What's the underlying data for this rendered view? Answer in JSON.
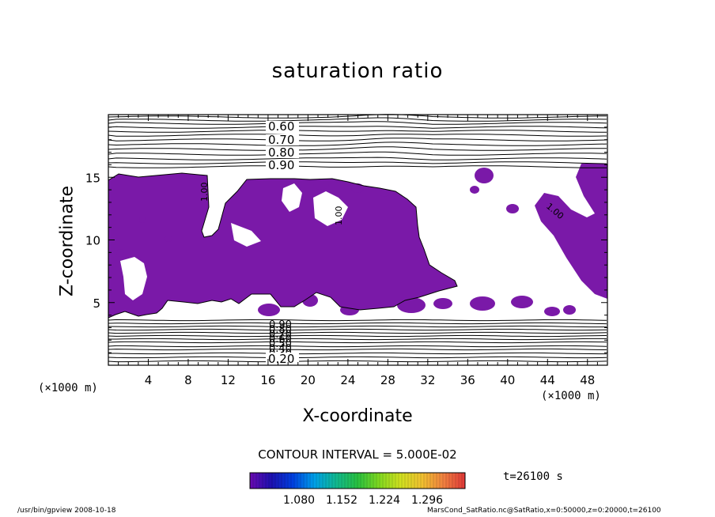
{
  "chart_data": {
    "type": "contour",
    "title": "saturation ratio",
    "xlabel": "X-coordinate",
    "ylabel": "Z-coordinate",
    "x_units": "(×1000 m)",
    "y_units": "(×1000 m)",
    "xlim": [
      0,
      50
    ],
    "ylim": [
      0,
      20
    ],
    "x_ticks": [
      "4",
      "8",
      "12",
      "16",
      "20",
      "24",
      "28",
      "32",
      "36",
      "40",
      "44",
      "48"
    ],
    "y_ticks": [
      "5",
      "10",
      "15"
    ],
    "contour_labels_top": [
      "0.60",
      "0.70",
      "0.80",
      "0.90"
    ],
    "contour_labels_bottom": [
      "0.90",
      "0.80",
      "0.70",
      "0.60",
      "0.50",
      "0.40",
      "0.30",
      "0.20"
    ],
    "contour_label_inner": "1.00",
    "contour_interval": "CONTOUR INTERVAL = 5.000E-02",
    "fill_color": "#7a19a8",
    "colorbar": {
      "ticks": [
        "1.080",
        "1.152",
        "1.224",
        "1.296"
      ],
      "colors": [
        "#6a0ab0",
        "#1c10b0",
        "#0040e0",
        "#00a0e8",
        "#10b890",
        "#28c040",
        "#80d820",
        "#d0e020",
        "#f0c030",
        "#f08040",
        "#e03838"
      ]
    },
    "time": "t=26100 s"
  },
  "footer": {
    "left": "/usr/bin/gpview   2008-10-18",
    "right": "MarsCond_SatRatio.nc@SatRatio,x=0:50000,z=0:20000,t=26100"
  }
}
